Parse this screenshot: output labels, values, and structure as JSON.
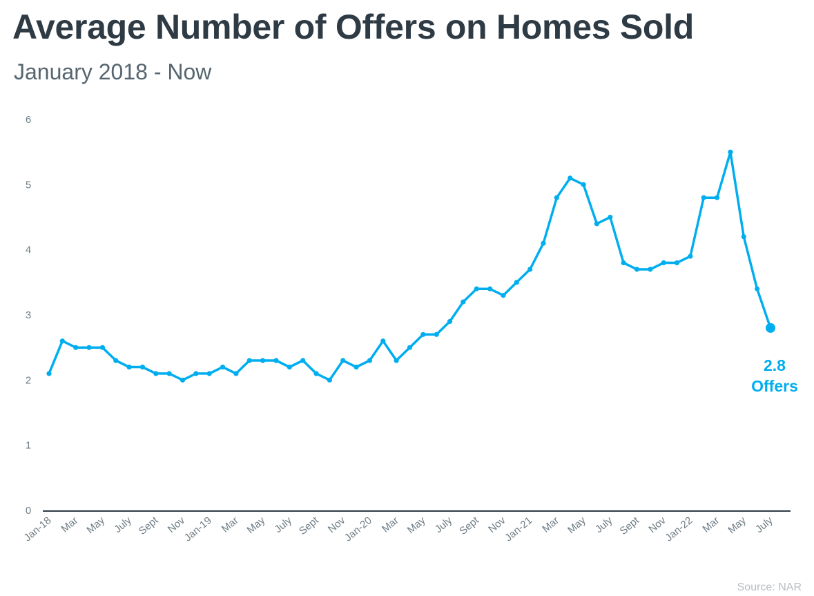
{
  "title": "Average Number of Offers on Homes Sold",
  "subtitle": "January 2018 - Now",
  "source": "Source: NAR",
  "colors": {
    "line": "#00aeef",
    "title": "#2e3a44",
    "axis": "#2e3a44",
    "tick": "#6f7c84"
  },
  "chart_data": {
    "type": "line",
    "title": "Average Number of Offers on Homes Sold",
    "subtitle": "January 2018 - Now",
    "xlabel": "",
    "ylabel": "",
    "ylim": [
      0,
      6
    ],
    "yticks": [
      0,
      1,
      2,
      3,
      4,
      5,
      6
    ],
    "grid": false,
    "legend": "none",
    "x": [
      "2018-01",
      "2018-02",
      "2018-03",
      "2018-04",
      "2018-05",
      "2018-06",
      "2018-07",
      "2018-08",
      "2018-09",
      "2018-10",
      "2018-11",
      "2018-12",
      "2019-01",
      "2019-02",
      "2019-03",
      "2019-04",
      "2019-05",
      "2019-06",
      "2019-07",
      "2019-08",
      "2019-09",
      "2019-10",
      "2019-11",
      "2019-12",
      "2020-01",
      "2020-02",
      "2020-03",
      "2020-04",
      "2020-05",
      "2020-06",
      "2020-07",
      "2020-08",
      "2020-09",
      "2020-10",
      "2020-11",
      "2020-12",
      "2021-01",
      "2021-02",
      "2021-03",
      "2021-04",
      "2021-05",
      "2021-06",
      "2021-07",
      "2021-08",
      "2021-09",
      "2021-10",
      "2021-11",
      "2021-12",
      "2022-01",
      "2022-02",
      "2022-03",
      "2022-04",
      "2022-05",
      "2022-06",
      "2022-07"
    ],
    "tick_labels": [
      {
        "label": "Jan-18",
        "index": 0
      },
      {
        "label": "Mar",
        "index": 2
      },
      {
        "label": "May",
        "index": 4
      },
      {
        "label": "July",
        "index": 6
      },
      {
        "label": "Sept",
        "index": 8
      },
      {
        "label": "Nov",
        "index": 10
      },
      {
        "label": "Jan-19",
        "index": 12
      },
      {
        "label": "Mar",
        "index": 14
      },
      {
        "label": "May",
        "index": 16
      },
      {
        "label": "July",
        "index": 18
      },
      {
        "label": "Sept",
        "index": 20
      },
      {
        "label": "Nov",
        "index": 22
      },
      {
        "label": "Jan-20",
        "index": 24
      },
      {
        "label": "Mar",
        "index": 26
      },
      {
        "label": "May",
        "index": 28
      },
      {
        "label": "July",
        "index": 30
      },
      {
        "label": "Sept",
        "index": 32
      },
      {
        "label": "Nov",
        "index": 34
      },
      {
        "label": "Jan-21",
        "index": 36
      },
      {
        "label": "Mar",
        "index": 38
      },
      {
        "label": "May",
        "index": 40
      },
      {
        "label": "July",
        "index": 42
      },
      {
        "label": "Sept",
        "index": 44
      },
      {
        "label": "Nov",
        "index": 46
      },
      {
        "label": "Jan-22",
        "index": 48
      },
      {
        "label": "Mar",
        "index": 50
      },
      {
        "label": "May",
        "index": 52
      },
      {
        "label": "July",
        "index": 54
      }
    ],
    "series": [
      {
        "values": [
          2.1,
          2.6,
          2.5,
          2.5,
          2.5,
          2.3,
          2.2,
          2.2,
          2.1,
          2.1,
          2.0,
          2.1,
          2.1,
          2.2,
          2.1,
          2.3,
          2.3,
          2.3,
          2.2,
          2.3,
          2.1,
          2.0,
          2.3,
          2.2,
          2.3,
          2.6,
          2.3,
          2.5,
          2.7,
          2.7,
          2.9,
          3.2,
          3.4,
          3.4,
          3.3,
          3.5,
          3.7,
          4.1,
          4.8,
          5.1,
          5.0,
          4.4,
          4.5,
          3.8,
          3.7,
          3.7,
          3.8,
          3.8,
          3.9,
          4.8,
          4.8,
          5.5,
          4.2,
          3.4,
          2.8
        ]
      }
    ],
    "annotations": [
      {
        "index": 54,
        "lines": [
          "2.8",
          "Offers"
        ]
      }
    ]
  }
}
